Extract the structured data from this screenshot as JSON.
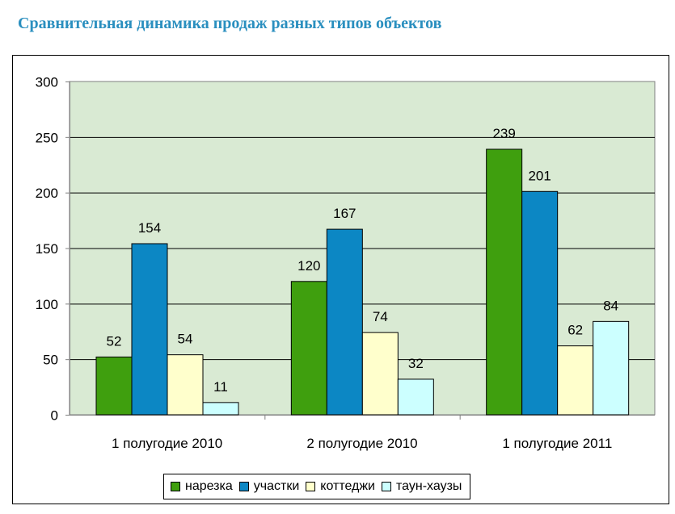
{
  "page": {
    "title": "Сравнительная динамика продаж разных типов объектов"
  },
  "colors": {
    "title": "#2a8fbf",
    "plot_background": "#d9ead3",
    "axis": "#808080",
    "gridline": "#000000"
  },
  "chart_data": {
    "type": "bar",
    "title": "",
    "xlabel": "",
    "ylabel": "",
    "ylim": [
      0,
      300
    ],
    "yticks": [
      0,
      50,
      100,
      150,
      200,
      250,
      300
    ],
    "grid": true,
    "legend_position": "bottom",
    "categories": [
      "1 полугодие 2010",
      "2 полугодие 2010",
      "1 полугодие 2011"
    ],
    "series": [
      {
        "name": "нарезка",
        "color": "#3f9f0e",
        "values": [
          52,
          120,
          239
        ]
      },
      {
        "name": "участки",
        "color": "#0c87c4",
        "values": [
          154,
          167,
          201
        ]
      },
      {
        "name": "коттеджи",
        "color": "#ffffcc",
        "values": [
          54,
          74,
          62
        ]
      },
      {
        "name": "таун-хаузы",
        "color": "#ccffff",
        "values": [
          11,
          32,
          84
        ]
      }
    ]
  }
}
